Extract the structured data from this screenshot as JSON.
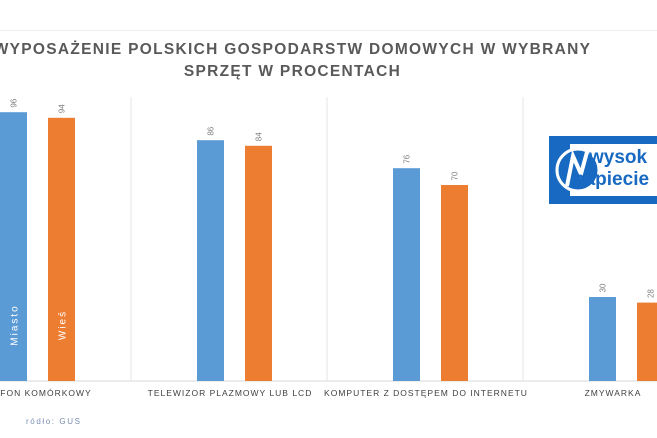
{
  "chart_data": {
    "type": "bar",
    "title_line1": "WYPOSAŻENIE POLSKICH GOSPODARSTW DOMOWYCH W WYBRANY",
    "title_line2": "SPRZĘT W PROCENTACH",
    "categories": [
      "FON KOMÓRKOWY",
      "TELEWIZOR PLAZMOWY LUB LCD",
      "KOMPUTER Z DOSTĘPEM DO INTERNETU",
      "ZMYWARKA"
    ],
    "series": [
      {
        "name": "Miasto",
        "color": "#5b9bd5",
        "values": [
          96,
          86,
          76,
          30
        ]
      },
      {
        "name": "Wieś",
        "color": "#ed7d31",
        "values": [
          94,
          84,
          70,
          28
        ]
      }
    ],
    "ylim": [
      0,
      100
    ],
    "grid": false
  },
  "source": "ródło: GUS",
  "logo": {
    "line1": "wysok",
    "line2": "napiecie",
    "icon": "lightning-n-logo-icon"
  }
}
